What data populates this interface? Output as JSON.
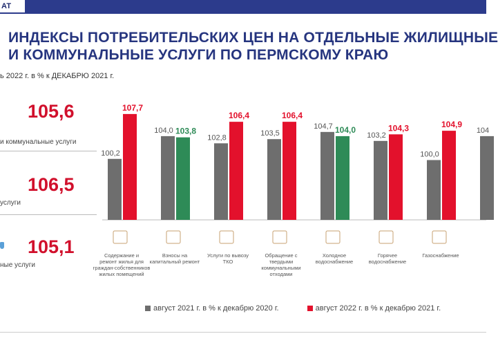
{
  "header": {
    "tab": "АТ"
  },
  "title": {
    "line1": "ИНДЕКСЫ ПОТРЕБИТЕЛЬСКИХ ЦЕН НА ОТДЕЛЬНЫЕ ЖИЛИЩНЫЕ",
    "line2": "И КОММУНАЛЬНЫЕ УСЛУГИ ПО ПЕРМСКОМУ КРАЮ"
  },
  "subtitle": "ь 2022 г. в % к ДЕКАБРЮ 2021 г.",
  "kpis": [
    {
      "value": "105,6",
      "label": "и коммунальные услуги"
    },
    {
      "value": "106,5",
      "label": "услуги"
    },
    {
      "value": "105,1",
      "label": "ные услуги"
    }
  ],
  "colors": {
    "title": "#26357f",
    "kpi": "#d1102c",
    "gray": "#6e6e6e",
    "red": "#e3112c",
    "green": "#2e8b57"
  },
  "chart_data": {
    "type": "bar",
    "ylim": [
      90,
      110
    ],
    "categories": [
      "Содержание и ремонт жилья для граждан-собственников жилых помещений",
      "Взносы на капитальный ремонт",
      "Услуги по вывозу ТКО",
      "Обращение с твердыми коммунальными отходами",
      "Холодное водоснабжение",
      "Горячее водоснабжение",
      "Газоснабжение",
      ""
    ],
    "series": [
      {
        "name": "август 2021 г. в % к декабрю 2020 г.",
        "values": [
          100.2,
          104.0,
          102.8,
          103.5,
          104.7,
          103.2,
          100.0,
          104.0
        ],
        "labels": [
          "100,2",
          "104,0",
          "102,8",
          "103,5",
          "104,7",
          "103,2",
          "100,0",
          "104"
        ]
      },
      {
        "name": "август 2022 г. в % к декабрю 2021 г.",
        "values": [
          107.7,
          103.8,
          106.4,
          106.4,
          104.0,
          104.3,
          104.9,
          null
        ],
        "labels": [
          "107,7",
          "103,8",
          "106,4",
          "106,4",
          "104,0",
          "104,3",
          "104,9",
          ""
        ],
        "highlight": [
          false,
          true,
          false,
          false,
          true,
          false,
          false,
          false
        ]
      }
    ]
  }
}
